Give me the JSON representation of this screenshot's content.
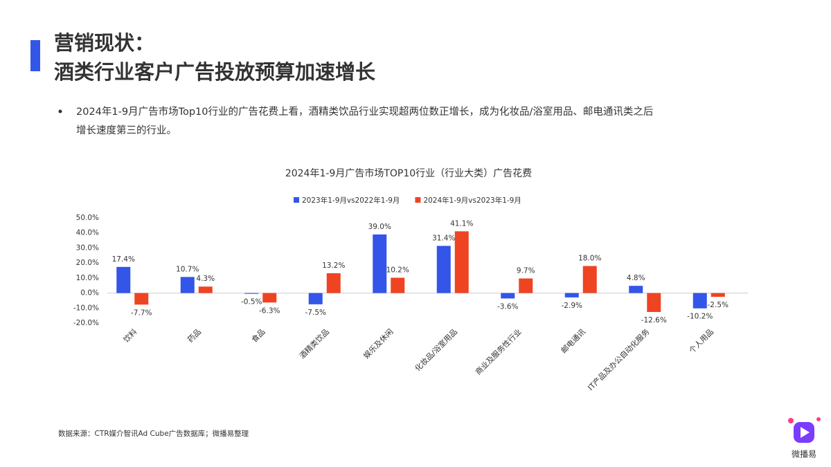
{
  "header": {
    "title_lines": [
      "营销现状：",
      "酒类行业客户广告投放预算加速增长"
    ]
  },
  "bullet": {
    "lines": [
      "2024年1-9月广告市场Top10行业的广告花费上看，酒精类饮品行业实现超两位数正增长，成为化妆品/浴室用品、邮电通讯类之后",
      "增长速度第三的行业。"
    ]
  },
  "chart_data": {
    "type": "bar",
    "title": "2024年1-9月广告市场TOP10行业（行业大类）广告花费",
    "categories": [
      "饮料",
      "药品",
      "食品",
      "酒精类饮品",
      "娱乐及休闲",
      "化妆品/浴室用品",
      "商业及服务性行业",
      "邮电通讯",
      "IT产品及办公自动化服务",
      "个人用品"
    ],
    "series": [
      {
        "name": "2023年1-9月vs2022年1-9月",
        "color": "#3355e8",
        "values": [
          17.4,
          10.7,
          -0.5,
          -7.5,
          39.0,
          31.4,
          -3.6,
          -2.9,
          4.8,
          -10.2
        ],
        "value_labels": [
          "17.4%",
          "10.7%",
          "-0.5%",
          "-7.5%",
          "39.0%",
          "31.4%",
          "-3.6%",
          "-2.9%",
          "4.8%",
          "-10.2%"
        ]
      },
      {
        "name": "2024年1-9月vs2023年1-9月",
        "color": "#ee4422",
        "values": [
          -7.7,
          4.3,
          -6.3,
          13.2,
          10.2,
          41.1,
          9.7,
          18.0,
          -12.6,
          -2.5
        ],
        "value_labels": [
          "-7.7%",
          "4.3%",
          "-6.3%",
          "13.2%",
          "10.2%",
          "41.1%",
          "9.7%",
          "18.0%",
          "-12.6%",
          "-2.5%"
        ]
      }
    ],
    "ylim": [
      -20,
      50
    ],
    "yticks": [
      {
        "value": 50,
        "label": "50.0%"
      },
      {
        "value": 40,
        "label": "40.0%"
      },
      {
        "value": 30,
        "label": "30.0%"
      },
      {
        "value": 20,
        "label": "20.0%"
      },
      {
        "value": 10,
        "label": "10.0%"
      },
      {
        "value": 0,
        "label": "0.0%"
      },
      {
        "value": -10,
        "label": "-10.0%"
      },
      {
        "value": -20,
        "label": "-20.0%"
      }
    ],
    "grid": false,
    "legend": "top"
  },
  "footer": {
    "source": "数据来源：CTR媒介智讯Ad Cube广告数据库；微播易整理",
    "logo": "微播易"
  }
}
